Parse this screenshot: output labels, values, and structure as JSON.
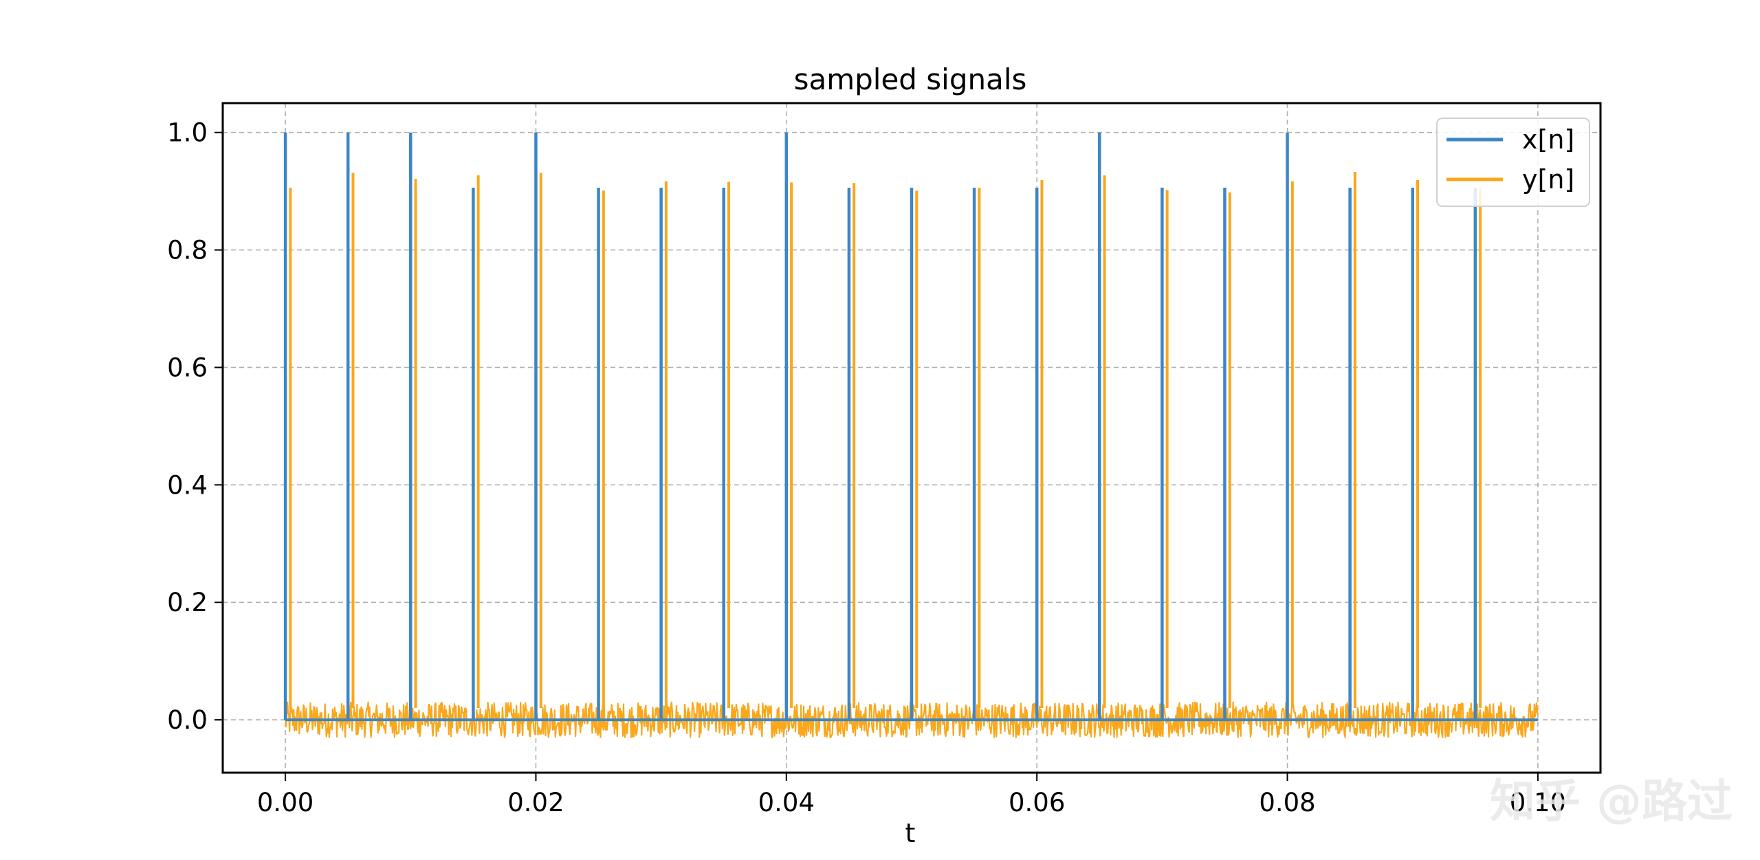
{
  "watermark": "知乎 @路过",
  "colors": {
    "x_series": "#3d86c6",
    "y_series": "#faa71b",
    "grid": "#b0b0b0",
    "axes": "#000000",
    "legend_border": "#d0d0d0"
  },
  "chart_data": {
    "type": "line",
    "title": "sampled signals",
    "xlabel": "t",
    "ylabel": "",
    "xlim": [
      -0.005,
      0.105
    ],
    "ylim": [
      -0.09,
      1.05
    ],
    "grid": true,
    "grid_style": "dashed",
    "legend_placement": "top-right",
    "x_ticks": [
      0.0,
      0.02,
      0.04,
      0.06,
      0.08,
      0.1
    ],
    "x_tick_labels": [
      "0.00",
      "0.02",
      "0.04",
      "0.06",
      "0.08",
      "0.10"
    ],
    "y_ticks": [
      0.0,
      0.2,
      0.4,
      0.6,
      0.8,
      1.0
    ],
    "y_tick_labels": [
      "0.0",
      "0.2",
      "0.4",
      "0.6",
      "0.8",
      "1.0"
    ],
    "x_range": [
      0.0,
      0.1
    ],
    "baseline_value": 0.0,
    "noise_amplitude": 0.03,
    "series": [
      {
        "name": "x[n]",
        "impulse_times": [
          0.0,
          0.005,
          0.01,
          0.015,
          0.02,
          0.025,
          0.03,
          0.035,
          0.04,
          0.045,
          0.05,
          0.055,
          0.06,
          0.065,
          0.07,
          0.075,
          0.08,
          0.085,
          0.09,
          0.095
        ],
        "impulse_values": [
          1.0,
          1.0,
          1.0,
          0.906,
          1.0,
          0.906,
          0.906,
          0.906,
          1.0,
          0.906,
          0.906,
          0.906,
          0.906,
          1.0,
          0.906,
          0.906,
          1.0,
          0.906,
          0.906,
          0.906
        ]
      },
      {
        "name": "y[n]",
        "impulse_times": [
          0.0004,
          0.0054,
          0.0104,
          0.0154,
          0.0204,
          0.0254,
          0.0304,
          0.0354,
          0.0404,
          0.0454,
          0.0504,
          0.0554,
          0.0604,
          0.0654,
          0.0704,
          0.0754,
          0.0804,
          0.0854,
          0.0904,
          0.0954
        ],
        "impulse_values": [
          0.906,
          0.931,
          0.921,
          0.927,
          0.931,
          0.901,
          0.917,
          0.916,
          0.915,
          0.914,
          0.901,
          0.906,
          0.919,
          0.927,
          0.902,
          0.898,
          0.917,
          0.933,
          0.919,
          0.905
        ]
      }
    ]
  }
}
